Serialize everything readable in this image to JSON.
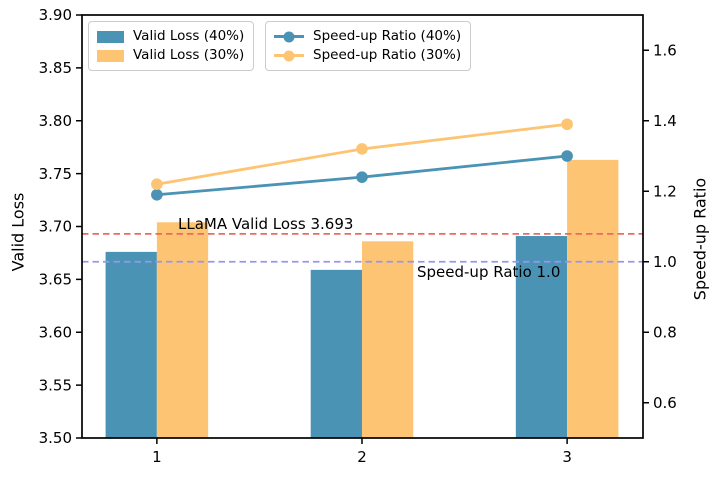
{
  "figure": {
    "background": "#ffffff",
    "text_color": "#000000"
  },
  "chart_data": {
    "type": "bar",
    "subtype": "dual-axis bar + line combo",
    "categories": [
      "1",
      "2",
      "3"
    ],
    "series": [
      {
        "name": "Valid Loss (40%)",
        "kind": "bar",
        "axis": "left",
        "color": "#4A93B5",
        "values": [
          3.676,
          3.659,
          3.691
        ]
      },
      {
        "name": "Valid Loss (30%)",
        "kind": "bar",
        "axis": "left",
        "color": "#FDC473",
        "values": [
          3.704,
          3.686,
          3.763
        ]
      },
      {
        "name": "Speed-up Ratio (40%)",
        "kind": "line",
        "axis": "right",
        "color": "#4A93B5",
        "values": [
          1.19,
          1.24,
          1.3
        ]
      },
      {
        "name": "Speed-up Ratio (30%)",
        "kind": "line",
        "axis": "right",
        "color": "#FDC473",
        "values": [
          1.22,
          1.32,
          1.39
        ]
      }
    ],
    "left_axis": {
      "label": "Valid Loss",
      "range": [
        3.5,
        3.9
      ],
      "ticks": [
        "3.50",
        "3.55",
        "3.60",
        "3.65",
        "3.70",
        "3.75",
        "3.80",
        "3.85",
        "3.90"
      ]
    },
    "right_axis": {
      "label": "Speed-up Ratio",
      "range": [
        0.5,
        1.7
      ],
      "ticks": [
        "0.6",
        "0.8",
        "1.0",
        "1.2",
        "1.4",
        "1.6"
      ]
    },
    "x_axis": {
      "range": [
        0.635,
        3.37
      ],
      "bar_width": 0.25
    },
    "reference_lines": [
      {
        "label": "LLaMA Valid Loss 3.693",
        "axis": "left",
        "value": 3.693,
        "color": "#EC6A5F",
        "style": "dashed"
      },
      {
        "label": "Speed-up Ratio 1.0",
        "axis": "right",
        "value": 1.0,
        "color": "#9696F2",
        "style": "dashed"
      }
    ],
    "legend_position": "upper left",
    "grid": false
  }
}
